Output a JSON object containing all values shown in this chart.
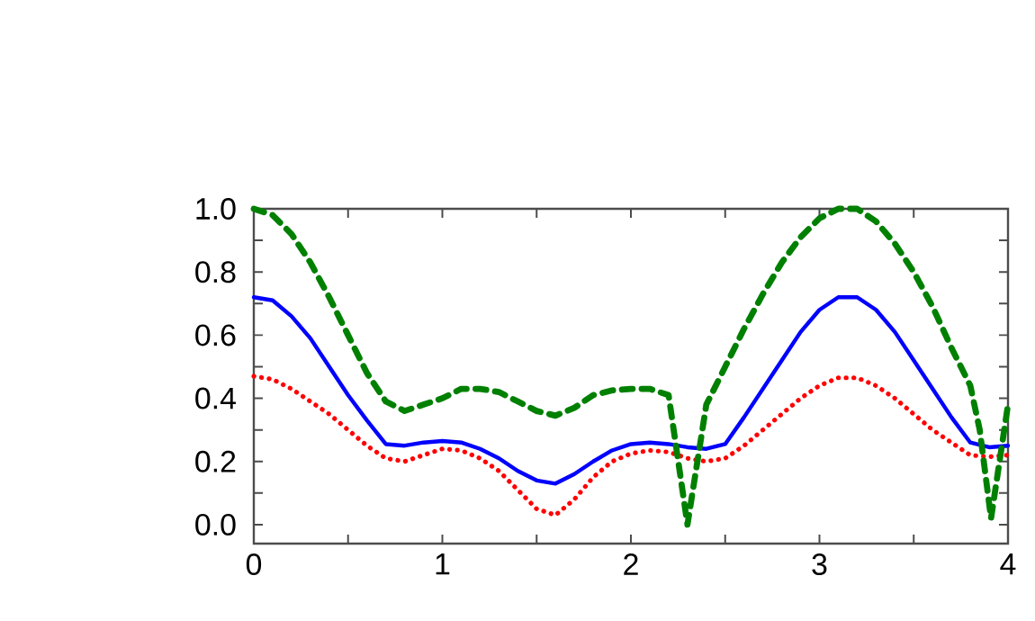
{
  "chart_data": {
    "type": "line",
    "xlim": [
      0,
      4
    ],
    "ylim": [
      -0.06,
      1.0
    ],
    "xticks": [
      0,
      {
        "value": 0.5,
        "label": null
      },
      1,
      {
        "value": 1.5,
        "label": null
      },
      2,
      {
        "value": 2.5,
        "label": null
      },
      3,
      {
        "value": 3.5,
        "label": null
      },
      4
    ],
    "yticks": [
      {
        "value": 0,
        "label": "0.0"
      },
      {
        "value": 0.1,
        "label": null
      },
      {
        "value": 0.2,
        "label": "0.2"
      },
      {
        "value": 0.3,
        "label": null
      },
      {
        "value": 0.4,
        "label": "0.4"
      },
      {
        "value": 0.5,
        "label": null
      },
      {
        "value": 0.6,
        "label": "0.6"
      },
      {
        "value": 0.7,
        "label": null
      },
      {
        "value": 0.8,
        "label": "0.8"
      },
      {
        "value": 0.9,
        "label": null
      },
      {
        "value": 1.0,
        "label": "1.0"
      }
    ],
    "marker": "none",
    "series": [
      {
        "color": "#0000ff",
        "line_style": "solid",
        "x": [
          0,
          0.1,
          0.2,
          0.3,
          0.4,
          0.5,
          0.6,
          0.7,
          0.8,
          0.9,
          1.0,
          1.1,
          1.2,
          1.3,
          1.4,
          1.5,
          1.6,
          1.7,
          1.8,
          1.9,
          2.0,
          2.1,
          2.2,
          2.3,
          2.4,
          2.5,
          2.6,
          2.7,
          2.8,
          2.9,
          3.0,
          3.1,
          3.2,
          3.3,
          3.4,
          3.5,
          3.6,
          3.7,
          3.8,
          3.9,
          4.0
        ],
        "values": [
          0.72,
          0.71,
          0.66,
          0.59,
          0.5,
          0.41,
          0.33,
          0.255,
          0.25,
          0.26,
          0.265,
          0.26,
          0.24,
          0.21,
          0.17,
          0.14,
          0.13,
          0.16,
          0.2,
          0.235,
          0.255,
          0.26,
          0.255,
          0.245,
          0.24,
          0.255,
          0.34,
          0.43,
          0.52,
          0.61,
          0.68,
          0.72,
          0.72,
          0.68,
          0.61,
          0.52,
          0.43,
          0.34,
          0.26,
          0.245,
          0.25
        ]
      },
      {
        "color": "#ff0000",
        "line_style": "dotted",
        "x": [
          0,
          0.1,
          0.2,
          0.3,
          0.4,
          0.5,
          0.6,
          0.7,
          0.8,
          0.9,
          1.0,
          1.1,
          1.2,
          1.3,
          1.4,
          1.5,
          1.6,
          1.7,
          1.8,
          1.9,
          2.0,
          2.1,
          2.2,
          2.3,
          2.4,
          2.5,
          2.6,
          2.7,
          2.8,
          2.9,
          3.0,
          3.1,
          3.2,
          3.3,
          3.4,
          3.5,
          3.6,
          3.7,
          3.8,
          3.9,
          4.0
        ],
        "values": [
          0.47,
          0.46,
          0.43,
          0.39,
          0.35,
          0.3,
          0.25,
          0.21,
          0.2,
          0.22,
          0.24,
          0.235,
          0.21,
          0.17,
          0.11,
          0.05,
          0.03,
          0.08,
          0.15,
          0.2,
          0.225,
          0.235,
          0.23,
          0.21,
          0.2,
          0.21,
          0.25,
          0.3,
          0.35,
          0.4,
          0.44,
          0.465,
          0.465,
          0.44,
          0.4,
          0.35,
          0.3,
          0.26,
          0.22,
          0.215,
          0.22
        ]
      },
      {
        "color": "#008000",
        "line_style": "dashed",
        "x": [
          0,
          0.1,
          0.2,
          0.3,
          0.4,
          0.5,
          0.6,
          0.7,
          0.8,
          0.9,
          1.0,
          1.1,
          1.2,
          1.3,
          1.4,
          1.5,
          1.6,
          1.7,
          1.8,
          1.9,
          2.0,
          2.1,
          2.2,
          2.3,
          2.4,
          2.5,
          2.6,
          2.7,
          2.8,
          2.9,
          3.0,
          3.1,
          3.2,
          3.3,
          3.4,
          3.5,
          3.6,
          3.7,
          3.8,
          3.85,
          3.91,
          4.0
        ],
        "values": [
          1.0,
          0.98,
          0.92,
          0.83,
          0.72,
          0.6,
          0.48,
          0.39,
          0.36,
          0.38,
          0.4,
          0.43,
          0.43,
          0.42,
          0.39,
          0.36,
          0.345,
          0.37,
          0.41,
          0.425,
          0.43,
          0.43,
          0.41,
          0.0,
          0.38,
          0.5,
          0.62,
          0.73,
          0.83,
          0.91,
          0.97,
          1.0,
          1.0,
          0.96,
          0.89,
          0.8,
          0.69,
          0.56,
          0.44,
          0.3,
          0.02,
          0.38
        ]
      }
    ]
  }
}
